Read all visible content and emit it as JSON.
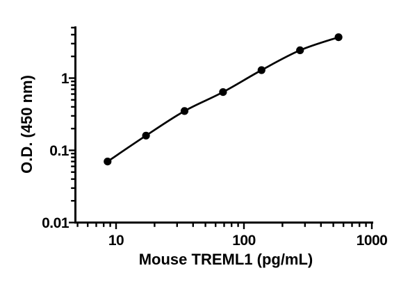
{
  "chart_data": {
    "type": "scatter",
    "subtype": "log-log standard curve with fitted line",
    "title": "",
    "xlabel": "Mouse TREML1 (pg/mL)",
    "ylabel": "O.D. (450 nm)",
    "x_scale": "log10",
    "y_scale": "log10",
    "x": [
      8.58,
      17.16,
      34.31,
      68.63,
      137.25,
      274.5,
      549
    ],
    "y": [
      0.07,
      0.16,
      0.35,
      0.64,
      1.29,
      2.43,
      3.68
    ],
    "x_ticks": [
      10,
      100,
      1000
    ],
    "x_tick_labels": [
      "10",
      "100",
      "1000"
    ],
    "y_ticks": [
      0.01,
      0.1,
      1
    ],
    "y_tick_labels": [
      "0.01",
      "0.1",
      "1"
    ],
    "x_range": [
      4.81,
      1025
    ],
    "y_range": [
      0.01,
      5.2
    ],
    "grid": false,
    "legend": false,
    "marker": "filled-circle",
    "marker_color": "#000000",
    "line_color": "#000000",
    "axis_color": "#000000",
    "background_color": "#ffffff"
  }
}
